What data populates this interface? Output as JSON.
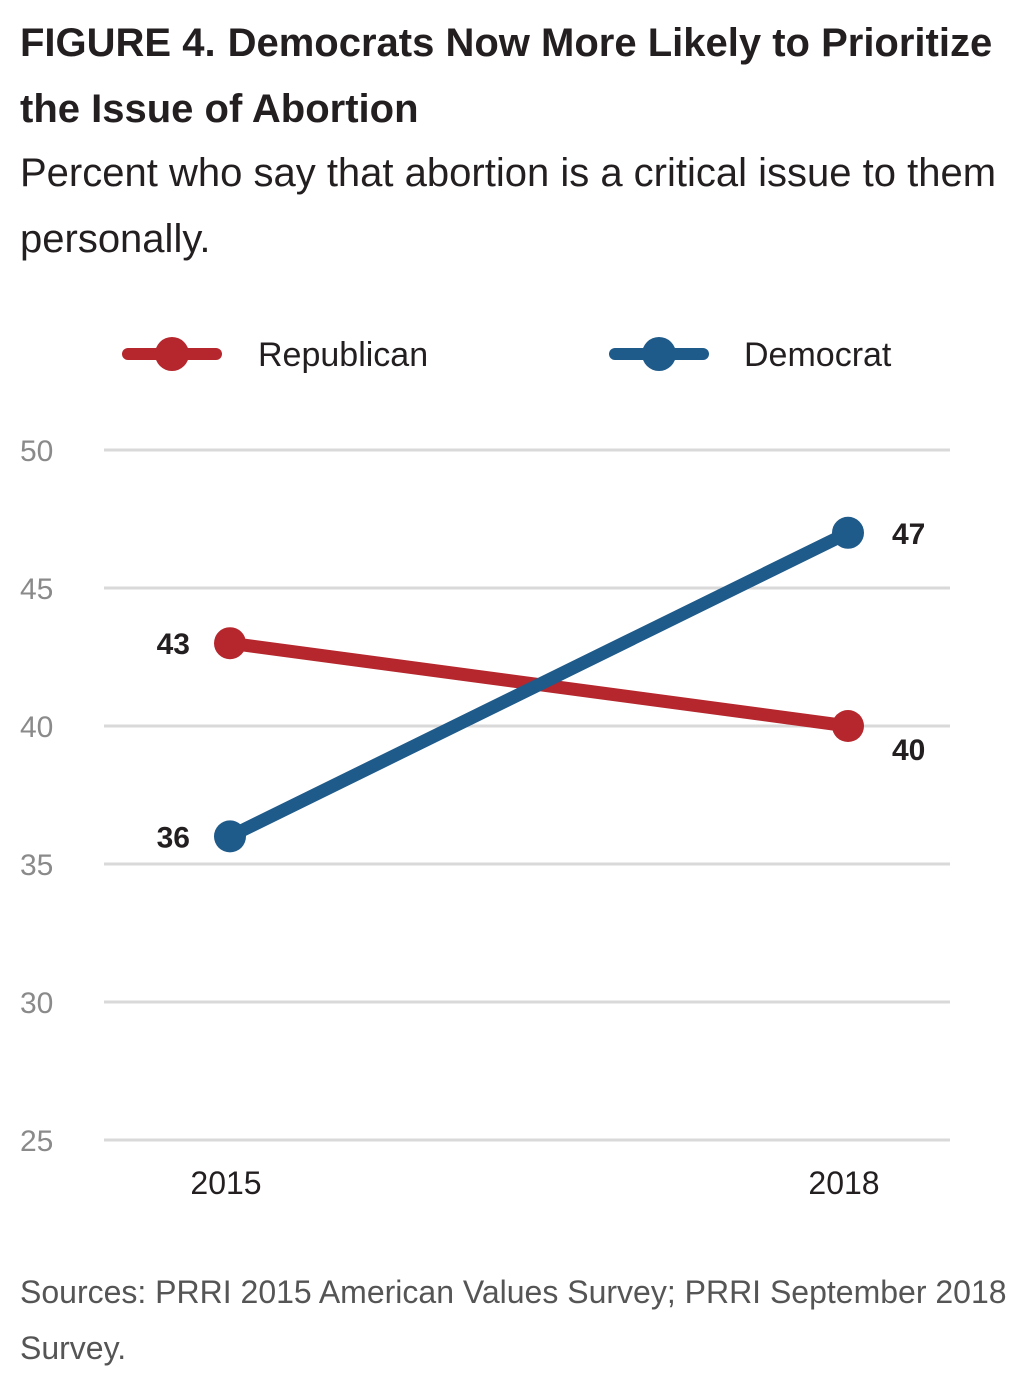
{
  "figure_label": "FIGURE 4.",
  "chart_data": {
    "type": "line",
    "title": "Democrats Now More Likely to Prioritize the Issue of Abortion",
    "subtitle": "Percent who say that abortion is a critical issue to them personally.",
    "categories": [
      "2015",
      "2018"
    ],
    "x": [
      2015,
      2018
    ],
    "series": [
      {
        "name": "Republican",
        "values": [
          43,
          40
        ],
        "color": "#b5272d"
      },
      {
        "name": "Democrat",
        "values": [
          36,
          47
        ],
        "color": "#1e5a8a"
      }
    ],
    "ylim": [
      25,
      50
    ],
    "yticks": [
      "25",
      "30",
      "35",
      "40",
      "45",
      "50"
    ],
    "grid": true,
    "gridColor": "#d9d9d9",
    "legend": "top",
    "xlabel": "",
    "ylabel": ""
  },
  "source": "Sources: PRRI 2015 American Values Survey; PRRI September 2018 Survey."
}
